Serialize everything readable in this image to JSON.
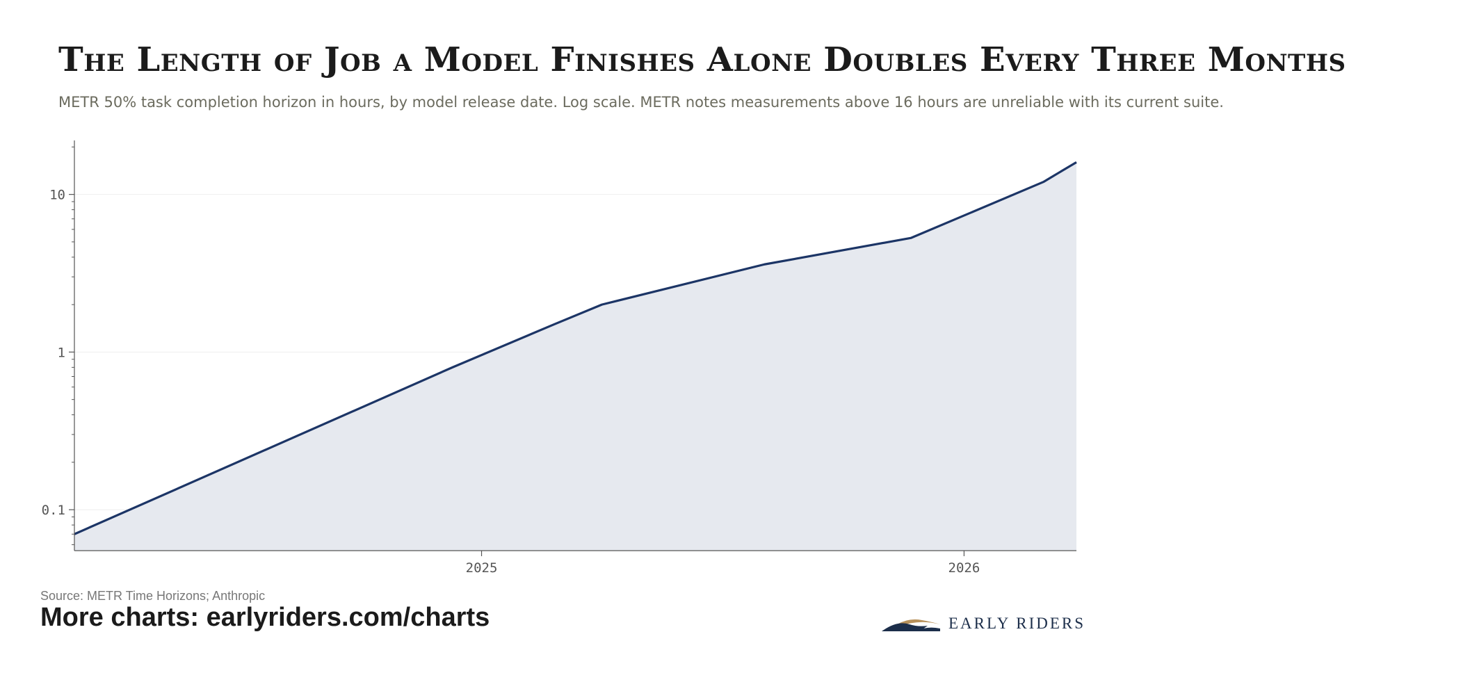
{
  "header": {
    "title": "The Length of Job a Model Finishes Alone Doubles Every Three Months",
    "subtitle": "METR 50% task completion horizon in hours, by model release date. Log scale. METR notes measurements above 16 hours are unreliable with its current suite."
  },
  "footer": {
    "source": "Source: METR Time Horizons; Anthropic",
    "more_charts": "More charts: earlyriders.com/charts",
    "brand_name": "EARLY RIDERS"
  },
  "colors": {
    "line": "#1c3566",
    "area": "#e6e9ef",
    "axis": "#555555",
    "grid": "#eeeeee",
    "brand_navy": "#1c2e4a",
    "brand_gold": "#b8915a"
  },
  "chart_data": {
    "type": "area",
    "title": "The Length of Job a Model Finishes Alone Doubles Every Three Months",
    "xlabel": "",
    "ylabel": "",
    "y_scale": "log",
    "y_ticks": [
      0.1,
      1,
      10
    ],
    "y_tick_labels": [
      "0.1",
      "1",
      "10"
    ],
    "x_ticks": [
      "2025-01-01",
      "2026-01-01"
    ],
    "x_tick_labels": [
      "2025",
      "2026"
    ],
    "xlim": [
      "2024-02-28",
      "2026-03-27"
    ],
    "ylim": [
      0.055,
      22
    ],
    "grid": true,
    "legend": "none",
    "series": [
      {
        "x": [
          "2024-02-28",
          "2024-12-10",
          "2025-02-25",
          "2025-04-02",
          "2025-08-03",
          "2025-11-22",
          "2026-03-02",
          "2026-03-27"
        ],
        "y": [
          0.07,
          0.8,
          1.5,
          2.0,
          3.6,
          5.3,
          12,
          16
        ]
      }
    ]
  }
}
